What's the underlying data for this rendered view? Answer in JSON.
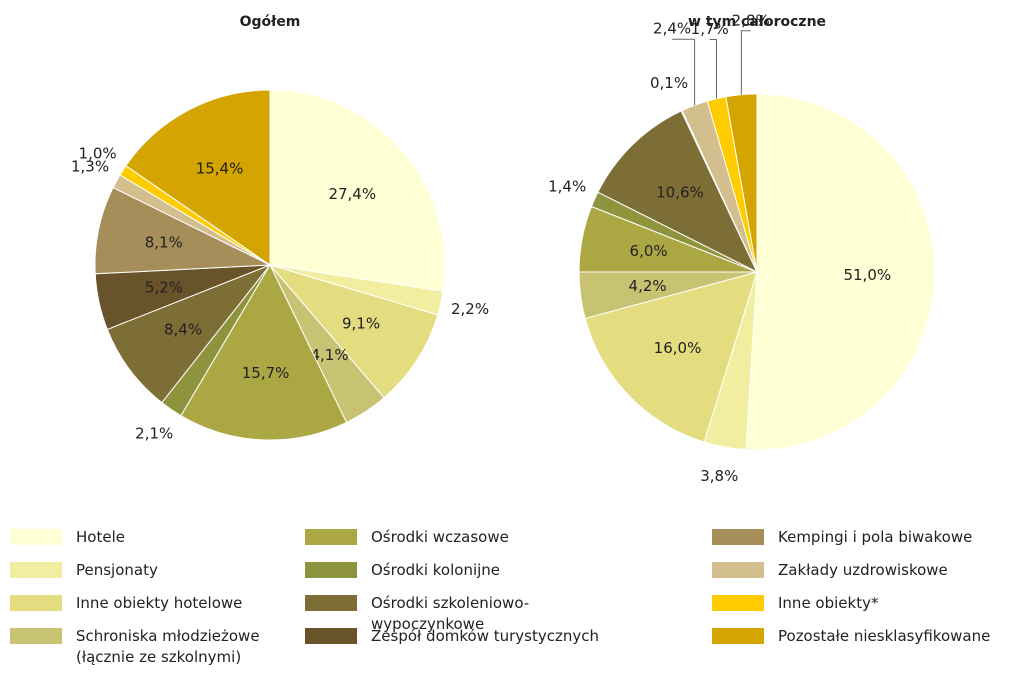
{
  "chart_data": [
    {
      "type": "pie",
      "title": "Ogółem",
      "categories": [
        "Hotele",
        "Pensjonaty",
        "Inne obiekty hotelowe",
        "Schroniska młodzieżowe (łącznie ze szkolnymi)",
        "Ośrodki wczasowe",
        "Ośrodki kolonijne",
        "Ośrodki szkoleniowo-wypoczynkowe",
        "Zespół domków turystycznych",
        "Kempingi i pola biwakowe",
        "Zakłady uzdrowiskowe",
        "Inne obiekty*",
        "Pozostałe niesklasyfikowane"
      ],
      "values": [
        27.4,
        2.2,
        9.1,
        4.1,
        15.7,
        2.1,
        8.4,
        5.2,
        8.1,
        1.3,
        1.0,
        15.4
      ],
      "value_labels": [
        "27,4%",
        "2,2%",
        "9,1%",
        "4,1%",
        "15,7%",
        "2,1%",
        "8,4%",
        "5,2%",
        "8,1%",
        "1,3%",
        "1,0%",
        "15,4%"
      ],
      "colors": [
        "#ffffd5",
        "#f2eea0",
        "#e3dd80",
        "#c8c273",
        "#aba844",
        "#8e943e",
        "#7d6e35",
        "#68532a",
        "#a68e5a",
        "#d3bf8e",
        "#ffcc00",
        "#d4a500"
      ]
    },
    {
      "type": "pie",
      "title": "w tym całoroczne",
      "categories": [
        "Hotele",
        "Pensjonaty",
        "Inne obiekty hotelowe",
        "Schroniska młodzieżowe (łącznie ze szkolnymi)",
        "Ośrodki wczasowe",
        "Ośrodki kolonijne",
        "Ośrodki szkoleniowo-wypoczynkowe",
        "Zespół domków turystycznych",
        "Zakłady uzdrowiskowe",
        "Inne obiekty*",
        "Pozostałe niesklasyfikowane"
      ],
      "values": [
        51.0,
        3.8,
        16.0,
        4.2,
        6.0,
        1.4,
        10.6,
        0.1,
        2.4,
        1.7,
        2.8
      ],
      "value_labels": [
        "51,0%",
        "3,8%",
        "16,0%",
        "4,2%",
        "6,0%",
        "1,4%",
        "10,6%",
        "0,1%",
        "2,4%",
        "1,7%",
        "2,8%"
      ],
      "colors": [
        "#ffffd5",
        "#f2eea0",
        "#e3dd80",
        "#c8c273",
        "#aba844",
        "#8e943e",
        "#7d6e35",
        "#68532a",
        "#d3bf8e",
        "#ffcc00",
        "#d4a500"
      ]
    }
  ]
}
